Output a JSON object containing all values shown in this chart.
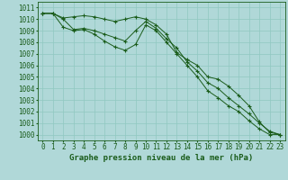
{
  "background_color": "#b0d8d8",
  "grid_color": "#90c8c0",
  "line_color": "#1a5c1a",
  "marker_color": "#1a5c1a",
  "xlabel": "Graphe pression niveau de la mer (hPa)",
  "xlabel_fontsize": 6.5,
  "tick_fontsize": 5.5,
  "ylim": [
    999.5,
    1011.5
  ],
  "xlim": [
    -0.5,
    23.5
  ],
  "yticks": [
    1000,
    1001,
    1002,
    1003,
    1004,
    1005,
    1006,
    1007,
    1008,
    1009,
    1010,
    1011
  ],
  "xticks": [
    0,
    1,
    2,
    3,
    4,
    5,
    6,
    7,
    8,
    9,
    10,
    11,
    12,
    13,
    14,
    15,
    16,
    17,
    18,
    19,
    20,
    21,
    22,
    23
  ],
  "series": [
    [
      1010.5,
      1010.5,
      1010.1,
      1010.2,
      1010.3,
      1010.2,
      1010.0,
      1009.8,
      1010.0,
      1010.2,
      1010.0,
      1009.5,
      1008.7,
      1007.1,
      1006.5,
      1006.0,
      1005.0,
      1004.8,
      1004.2,
      1003.4,
      1002.5,
      1001.1,
      1000.2,
      1000.0
    ],
    [
      1010.5,
      1010.5,
      1010.0,
      1009.1,
      1009.2,
      1009.0,
      1008.7,
      1008.4,
      1008.1,
      1009.0,
      1009.8,
      1009.2,
      1008.3,
      1007.5,
      1006.3,
      1005.5,
      1004.5,
      1004.0,
      1003.2,
      1002.5,
      1001.8,
      1001.0,
      1000.3,
      1000.0
    ],
    [
      1010.5,
      1010.5,
      1009.3,
      1009.0,
      1009.1,
      1008.7,
      1008.1,
      1007.6,
      1007.3,
      1007.8,
      1009.5,
      1009.0,
      1008.0,
      1007.0,
      1006.0,
      1005.0,
      1003.8,
      1003.2,
      1002.5,
      1002.0,
      1001.2,
      1000.5,
      1000.0,
      1000.0
    ]
  ],
  "figwidth": 3.2,
  "figheight": 2.0,
  "dpi": 100
}
